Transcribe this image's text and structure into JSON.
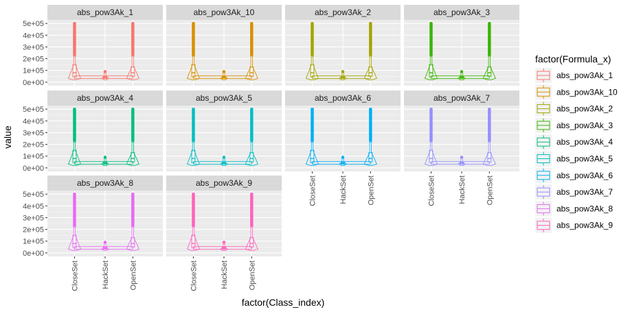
{
  "chart_data": {
    "type": "violin_box_facets",
    "xlabel": "factor(Class_index)",
    "ylabel": "value",
    "categories": [
      "CloseSet",
      "HackSet",
      "OpenSet"
    ],
    "y_ticks": [
      0,
      100000,
      200000,
      300000,
      400000,
      500000
    ],
    "y_tick_labels": [
      "0e+00",
      "1e+05",
      "2e+05",
      "3e+05",
      "4e+05",
      "5e+05"
    ],
    "ylim": [
      -30000,
      530000
    ],
    "grid": true,
    "legend": {
      "title": "factor(Formula_x)",
      "placement": "right",
      "entries": [
        "abs_pow3Ak_1",
        "abs_pow3Ak_10",
        "abs_pow3Ak_2",
        "abs_pow3Ak_3",
        "abs_pow3Ak_4",
        "abs_pow3Ak_5",
        "abs_pow3Ak_6",
        "abs_pow3Ak_7",
        "abs_pow3Ak_8",
        "abs_pow3Ak_9"
      ]
    },
    "facet_layout": {
      "ncol": 4,
      "nrow": 3
    },
    "facets": [
      {
        "name": "abs_pow3Ak_1",
        "color": "#F8766D"
      },
      {
        "name": "abs_pow3Ak_10",
        "color": "#D89000"
      },
      {
        "name": "abs_pow3Ak_2",
        "color": "#A3A500"
      },
      {
        "name": "abs_pow3Ak_3",
        "color": "#39B600"
      },
      {
        "name": "abs_pow3Ak_4",
        "color": "#00BF7D"
      },
      {
        "name": "abs_pow3Ak_5",
        "color": "#00BFC4"
      },
      {
        "name": "abs_pow3Ak_6",
        "color": "#00B0F6"
      },
      {
        "name": "abs_pow3Ak_7",
        "color": "#9590FF"
      },
      {
        "name": "abs_pow3Ak_8",
        "color": "#E76BF3"
      },
      {
        "name": "abs_pow3Ak_9",
        "color": "#FF62BC"
      }
    ],
    "summary_per_class": {
      "CloseSet": {
        "min": 20000,
        "q1": 45000,
        "median": 80000,
        "q3": 150000,
        "max": 500000
      },
      "HackSet": {
        "min": 20000,
        "q1": 35000,
        "median": 42000,
        "q3": 50000,
        "max": 90000
      },
      "OpenSet": {
        "min": 20000,
        "q1": 50000,
        "median": 80000,
        "q3": 130000,
        "max": 500000
      }
    }
  }
}
